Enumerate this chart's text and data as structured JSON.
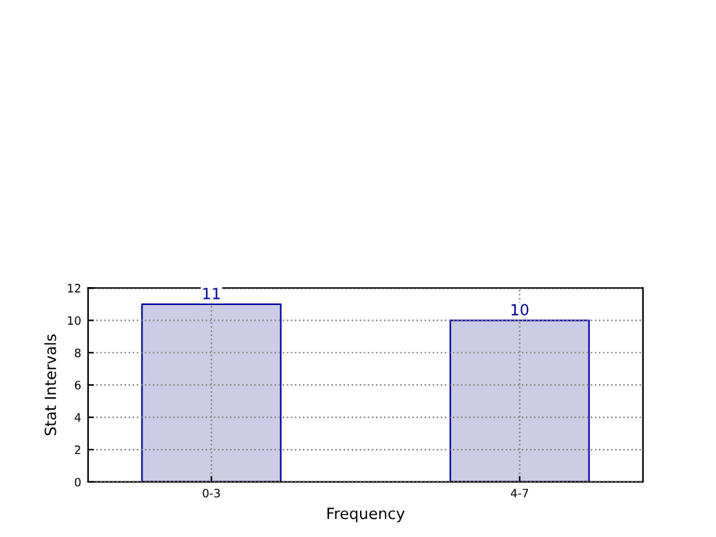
{
  "chart_data": {
    "type": "bar",
    "xlabel": "Frequency",
    "ylabel": "Stat Intervals",
    "categories": [
      "0-3",
      "4-7"
    ],
    "values": [
      11,
      10
    ],
    "color": "#ccccE5",
    "ylim": [
      0,
      12
    ],
    "yticks": [
      0,
      2,
      4,
      6,
      8,
      10,
      12
    ],
    "grid": true,
    "data_labels": true
  }
}
